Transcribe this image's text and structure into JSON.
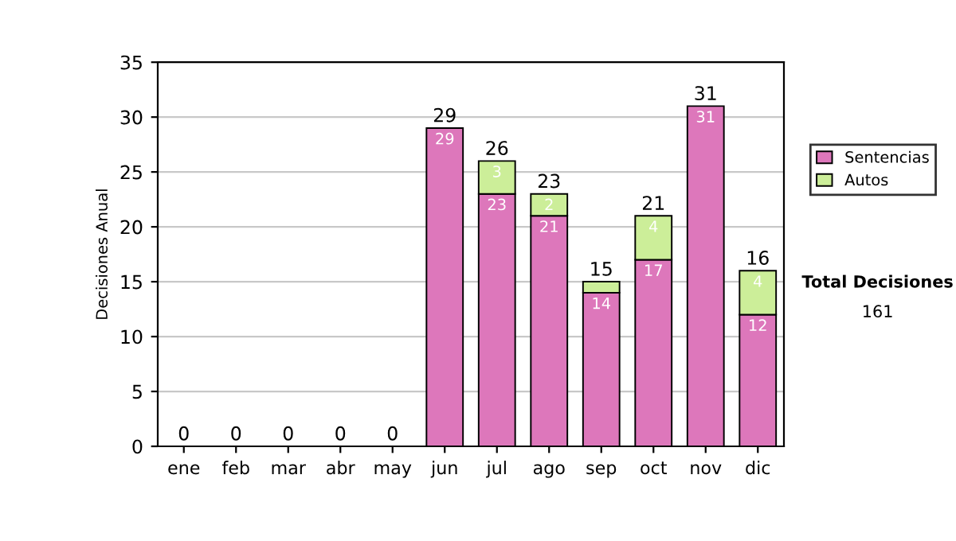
{
  "chart_data": {
    "type": "bar",
    "stacked": true,
    "ylabel": "Decisiones Anual",
    "categories": [
      "ene",
      "feb",
      "mar",
      "abr",
      "may",
      "jun",
      "jul",
      "ago",
      "sep",
      "oct",
      "nov",
      "dic"
    ],
    "series": [
      {
        "name": "Sentencias",
        "color": "#dd77bb",
        "values": [
          0,
          0,
          0,
          0,
          0,
          29,
          23,
          21,
          14,
          17,
          31,
          12
        ],
        "value_labels": [
          null,
          null,
          null,
          null,
          null,
          "29",
          "23",
          "21",
          "14",
          "17",
          "31",
          "12"
        ]
      },
      {
        "name": "Autos",
        "color": "#ccee99",
        "values": [
          0,
          0,
          0,
          0,
          0,
          0,
          3,
          2,
          1,
          4,
          0,
          4
        ],
        "value_labels": [
          null,
          null,
          null,
          null,
          null,
          null,
          "3",
          "2",
          null,
          "4",
          null,
          "4"
        ]
      }
    ],
    "totals": [
      "0",
      "0",
      "0",
      "0",
      "0",
      "29",
      "26",
      "23",
      "15",
      "21",
      "31",
      "16"
    ],
    "ylim": [
      0,
      35
    ],
    "yticks": [
      0,
      5,
      10,
      15,
      20,
      25,
      30,
      35
    ],
    "grid": "y",
    "legend": "right",
    "annotations": [
      "Total Decisiones",
      "161"
    ]
  }
}
